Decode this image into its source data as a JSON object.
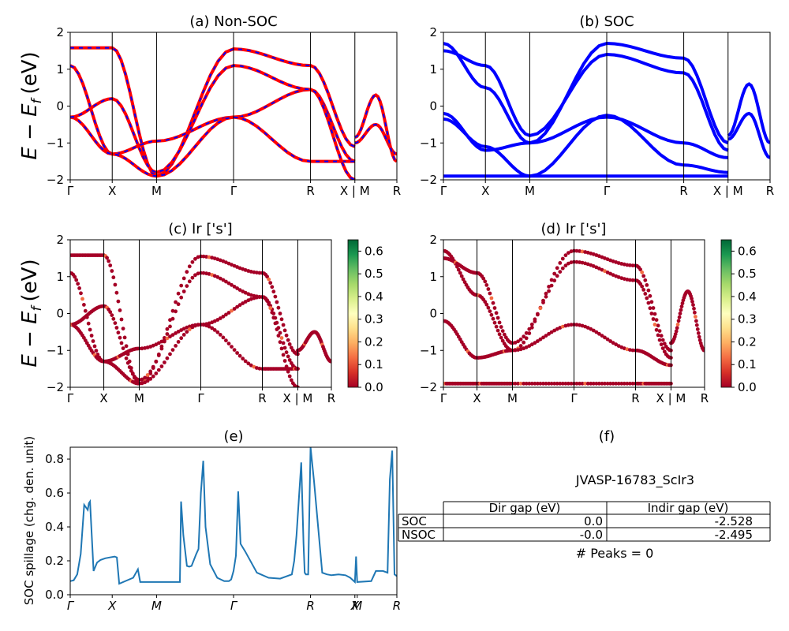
{
  "figure": {
    "panels": {
      "a": {
        "title": "(a) Non-SOC"
      },
      "b": {
        "title": "(b) SOC"
      },
      "c": {
        "title": "(c)  Ir ['s']"
      },
      "d": {
        "title": "(d) Ir ['s']"
      },
      "e": {
        "title": "(e)"
      },
      "f": {
        "title": "(f)"
      }
    },
    "ylabel_band": "E − E",
    "ylabel_band_sub": "f",
    "ylabel_band_unit": "(eV)",
    "ylabel_spillage": "SOC spillage (chg. den. unit)",
    "band_kpath": [
      "Γ",
      "X",
      "M",
      "Γ",
      "R",
      "X | M",
      "R"
    ],
    "spillage_kpath": [
      "Γ",
      "X",
      "M",
      "Γ",
      "R",
      "X",
      "M",
      "R"
    ]
  },
  "colors": {
    "nonsoc_solid": "#ff0000",
    "nonsoc_dash": "#0000ff",
    "soc": "#0000ff",
    "spillage": "#1f77b4"
  },
  "info": {
    "material": "JVASP-16783_ScIr3",
    "table_headers": [
      "",
      "Dir gap (eV)",
      "Indir gap (eV)"
    ],
    "table_rows": [
      [
        "SOC",
        "0.0",
        "-2.528"
      ],
      [
        "NSOC",
        "-0.0",
        "-2.495"
      ]
    ],
    "peaks": "# Peaks = 0"
  },
  "chart_data": [
    {
      "id": "a",
      "type": "line",
      "title": "(a) Non-SOC",
      "ylim": [
        -2,
        2
      ],
      "yticks": [
        -2,
        -1,
        0,
        1,
        2
      ],
      "x_ticks": {
        "positions": [
          0,
          0.18,
          0.37,
          0.7,
          1.03,
          1.22,
          1.4
        ],
        "labels": [
          "Γ",
          "X",
          "M",
          "Γ",
          "R",
          "X | M",
          "R"
        ]
      },
      "series": [
        {
          "x": [
            0,
            0.18,
            0.37,
            0.7,
            1.03,
            1.22
          ],
          "values": [
            1.58,
            1.58,
            -1.9,
            1.55,
            1.1,
            -1.1
          ]
        },
        {
          "x": [
            0,
            0.18,
            0.37,
            0.7,
            1.03,
            1.22
          ],
          "values": [
            1.1,
            -1.3,
            -0.95,
            -0.3,
            0.45,
            -1.5
          ]
        },
        {
          "x": [
            0,
            0.18,
            0.37,
            0.7,
            1.03,
            1.22
          ],
          "values": [
            -0.3,
            -1.3,
            -1.9,
            -0.3,
            -1.5,
            -1.5
          ]
        },
        {
          "x": [
            0,
            0.18,
            0.37,
            0.7,
            1.03,
            1.22
          ],
          "values": [
            -0.3,
            0.2,
            -1.8,
            1.1,
            0.45,
            -2.0
          ]
        },
        {
          "x": [
            1.22,
            1.31,
            1.4
          ],
          "values": [
            -1.0,
            -0.5,
            -1.3
          ]
        },
        {
          "x": [
            1.22,
            1.31,
            1.4
          ],
          "values": [
            -0.85,
            0.3,
            -1.5
          ]
        }
      ]
    },
    {
      "id": "b",
      "type": "line",
      "title": "(b) SOC",
      "ylim": [
        -2,
        2
      ],
      "yticks": [
        -2,
        -1,
        0,
        1,
        2
      ],
      "x_ticks": {
        "positions": [
          0,
          0.18,
          0.37,
          0.7,
          1.03,
          1.22,
          1.4
        ],
        "labels": [
          "Γ",
          "X",
          "M",
          "Γ",
          "R",
          "X | M",
          "R"
        ]
      },
      "series": [
        {
          "x": [
            0,
            0.18,
            0.37,
            0.7,
            1.03,
            1.22
          ],
          "values": [
            1.7,
            0.5,
            -1.0,
            1.7,
            1.3,
            -1.0
          ]
        },
        {
          "x": [
            0,
            0.18,
            0.37,
            0.7,
            1.03,
            1.22
          ],
          "values": [
            1.5,
            1.1,
            -0.8,
            1.4,
            0.9,
            -1.2
          ]
        },
        {
          "x": [
            0,
            0.18,
            0.37,
            0.7,
            1.03,
            1.22
          ],
          "values": [
            -0.2,
            -1.2,
            -1.0,
            -0.3,
            -1.0,
            -1.4
          ]
        },
        {
          "x": [
            0,
            0.18,
            0.37,
            0.7,
            1.03,
            1.22
          ],
          "values": [
            -0.35,
            -1.1,
            -1.9,
            -0.25,
            -1.6,
            -1.8
          ]
        },
        {
          "x": [
            0,
            0.18,
            0.37,
            0.7,
            1.03,
            1.22
          ],
          "values": [
            -1.9,
            -1.9,
            -1.9,
            -1.9,
            -1.9,
            -1.9
          ]
        },
        {
          "x": [
            1.22,
            1.31,
            1.4
          ],
          "values": [
            -0.8,
            0.6,
            -1.0
          ]
        },
        {
          "x": [
            1.22,
            1.31,
            1.4
          ],
          "values": [
            -0.9,
            -0.2,
            -1.4
          ]
        }
      ]
    },
    {
      "id": "c",
      "type": "scatter",
      "title": "(c)  Ir ['s']",
      "ylim": [
        -2,
        2
      ],
      "yticks": [
        -2,
        -1,
        0,
        1,
        2
      ],
      "colorbar": {
        "range": [
          0,
          0.65
        ],
        "ticks": [
          0.0,
          0.1,
          0.2,
          0.3,
          0.4,
          0.5,
          0.6
        ],
        "colormap": "RdYlGn"
      },
      "x_ticks": {
        "positions": [
          0,
          0.18,
          0.37,
          0.7,
          1.03,
          1.22,
          1.4
        ],
        "labels": [
          "Γ",
          "X",
          "M",
          "Γ",
          "R",
          "X | M",
          "R"
        ]
      },
      "series": [
        {
          "x": [
            0,
            0.18,
            0.37,
            0.7,
            1.03,
            1.22
          ],
          "values": [
            1.58,
            1.58,
            -1.9,
            1.55,
            1.1,
            -1.1
          ]
        },
        {
          "x": [
            0,
            0.18,
            0.37,
            0.7,
            1.03,
            1.22
          ],
          "values": [
            1.1,
            -1.3,
            -0.95,
            -0.3,
            0.45,
            -1.5
          ]
        },
        {
          "x": [
            0,
            0.18,
            0.37,
            0.7,
            1.03,
            1.22
          ],
          "values": [
            -0.3,
            -1.3,
            -1.9,
            -0.3,
            -1.5,
            -1.5
          ]
        },
        {
          "x": [
            0,
            0.18,
            0.37,
            0.7,
            1.03,
            1.22
          ],
          "values": [
            -0.3,
            0.2,
            -1.8,
            1.1,
            0.45,
            -2.0
          ]
        },
        {
          "x": [
            1.22,
            1.31,
            1.4
          ],
          "values": [
            -1.0,
            -0.5,
            -1.3
          ]
        }
      ]
    },
    {
      "id": "d",
      "type": "scatter",
      "title": "(d) Ir ['s']",
      "ylim": [
        -2,
        2
      ],
      "yticks": [
        -2,
        -1,
        0,
        1,
        2
      ],
      "colorbar": {
        "range": [
          0,
          0.65
        ],
        "ticks": [
          0.0,
          0.1,
          0.2,
          0.3,
          0.4,
          0.5,
          0.6
        ],
        "colormap": "RdYlGn"
      },
      "x_ticks": {
        "positions": [
          0,
          0.18,
          0.37,
          0.7,
          1.03,
          1.22,
          1.4
        ],
        "labels": [
          "Γ",
          "X",
          "M",
          "Γ",
          "R",
          "X | M",
          "R"
        ]
      },
      "series": [
        {
          "x": [
            0,
            0.18,
            0.37,
            0.7,
            1.03,
            1.22
          ],
          "values": [
            1.7,
            0.5,
            -1.0,
            1.7,
            1.3,
            -1.0
          ]
        },
        {
          "x": [
            0,
            0.18,
            0.37,
            0.7,
            1.03,
            1.22
          ],
          "values": [
            1.5,
            1.1,
            -0.8,
            1.4,
            0.9,
            -1.2
          ]
        },
        {
          "x": [
            0,
            0.18,
            0.37,
            0.7,
            1.03,
            1.22
          ],
          "values": [
            -0.2,
            -1.2,
            -1.0,
            -0.3,
            -1.0,
            -1.4
          ]
        },
        {
          "x": [
            0,
            0.18,
            0.37,
            0.7,
            1.03,
            1.22
          ],
          "values": [
            -1.9,
            -1.9,
            -1.9,
            -1.9,
            -1.9,
            -1.9
          ]
        },
        {
          "x": [
            1.22,
            1.31,
            1.4
          ],
          "values": [
            -0.8,
            0.6,
            -1.0
          ]
        }
      ]
    },
    {
      "id": "e",
      "type": "line",
      "title": "(e)",
      "ylabel": "SOC spillage (chg. den. unit)",
      "ylim": [
        0,
        0.87
      ],
      "yticks": [
        0.0,
        0.2,
        0.4,
        0.6,
        0.8
      ],
      "x_ticks": {
        "positions": [
          0,
          0.18,
          0.37,
          0.7,
          1.03,
          1.22,
          1.23,
          1.4
        ],
        "labels": [
          "Γ",
          "X",
          "M",
          "Γ",
          "R",
          "X",
          "M",
          "R"
        ]
      },
      "series": [
        {
          "x": [
            0,
            0.015,
            0.03,
            0.045,
            0.06,
            0.075,
            0.08,
            0.085,
            0.1,
            0.115,
            0.13,
            0.15,
            0.17,
            0.19,
            0.2,
            0.21,
            0.27,
            0.29,
            0.3,
            0.35,
            0.4,
            0.45,
            0.47,
            0.475,
            0.485,
            0.5,
            0.51,
            0.52,
            0.54,
            0.55,
            0.56,
            0.57,
            0.58,
            0.6,
            0.63,
            0.66,
            0.68,
            0.69,
            0.7,
            0.71,
            0.72,
            0.73,
            0.75,
            0.8,
            0.85,
            0.9,
            0.95,
            0.96,
            0.97,
            0.99,
            1.0,
            1.005,
            1.01,
            1.02,
            1.03,
            1.045,
            1.08,
            1.1,
            1.12,
            1.15,
            1.18,
            1.2,
            1.22,
            1.225,
            1.23,
            1.29,
            1.31,
            1.34,
            1.36,
            1.37,
            1.38,
            1.39,
            1.4
          ],
          "values": [
            0.08,
            0.085,
            0.12,
            0.24,
            0.53,
            0.5,
            0.54,
            0.55,
            0.14,
            0.19,
            0.205,
            0.215,
            0.22,
            0.225,
            0.22,
            0.065,
            0.1,
            0.15,
            0.075,
            0.075,
            0.075,
            0.075,
            0.075,
            0.55,
            0.35,
            0.17,
            0.165,
            0.17,
            0.24,
            0.27,
            0.6,
            0.79,
            0.4,
            0.18,
            0.1,
            0.08,
            0.08,
            0.09,
            0.14,
            0.23,
            0.61,
            0.3,
            0.255,
            0.13,
            0.1,
            0.095,
            0.12,
            0.2,
            0.35,
            0.78,
            0.3,
            0.13,
            0.12,
            0.12,
            0.87,
            0.67,
            0.13,
            0.12,
            0.115,
            0.12,
            0.115,
            0.1,
            0.075,
            0.225,
            0.075,
            0.08,
            0.14,
            0.14,
            0.13,
            0.68,
            0.85,
            0.12,
            0.11
          ]
        }
      ]
    }
  ]
}
